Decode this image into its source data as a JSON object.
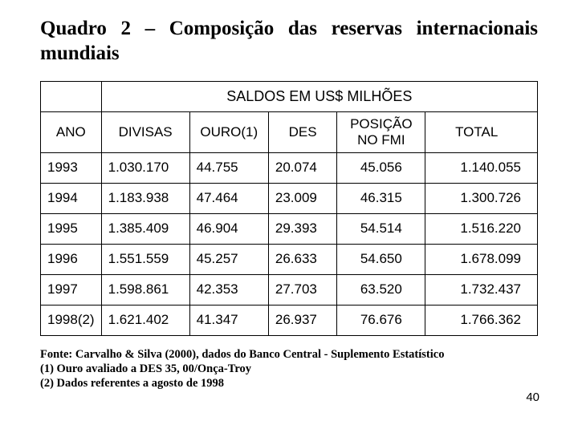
{
  "title": "Quadro 2 – Composição das reservas internacionais mundiais",
  "table": {
    "header_main": "SALDOS EM US$ MILHÕES",
    "columns": {
      "ano": "ANO",
      "divisas": "DIVISAS",
      "ouro": "OURO(1)",
      "des": "DES",
      "fmi": "POSIÇÃO NO FMI",
      "total": "TOTAL"
    },
    "rows": [
      {
        "ano": "1993",
        "divisas": "1.030.170",
        "ouro": "44.755",
        "des": "20.074",
        "fmi": "45.056",
        "total": "1.140.055"
      },
      {
        "ano": "1994",
        "divisas": "1.183.938",
        "ouro": "47.464",
        "des": "23.009",
        "fmi": "46.315",
        "total": "1.300.726"
      },
      {
        "ano": "1995",
        "divisas": "1.385.409",
        "ouro": "46.904",
        "des": "29.393",
        "fmi": "54.514",
        "total": "1.516.220"
      },
      {
        "ano": "1996",
        "divisas": "1.551.559",
        "ouro": "45.257",
        "des": "26.633",
        "fmi": "54.650",
        "total": "1.678.099"
      },
      {
        "ano": "1997",
        "divisas": "1.598.861",
        "ouro": "42.353",
        "des": "27.703",
        "fmi": "63.520",
        "total": "1.732.437"
      },
      {
        "ano": "1998(2)",
        "divisas": "1.621.402",
        "ouro": "41.347",
        "des": "26.937",
        "fmi": "76.676",
        "total": "1.766.362"
      }
    ]
  },
  "footnotes": {
    "l1": "Fonte: Carvalho & Silva (2000), dados do Banco Central - Suplemento Estatístico",
    "l2": "(1) Ouro avaliado a DES 35, 00/Onça-Troy",
    "l3": "(2) Dados referentes a agosto de 1998"
  },
  "page_number": "40"
}
